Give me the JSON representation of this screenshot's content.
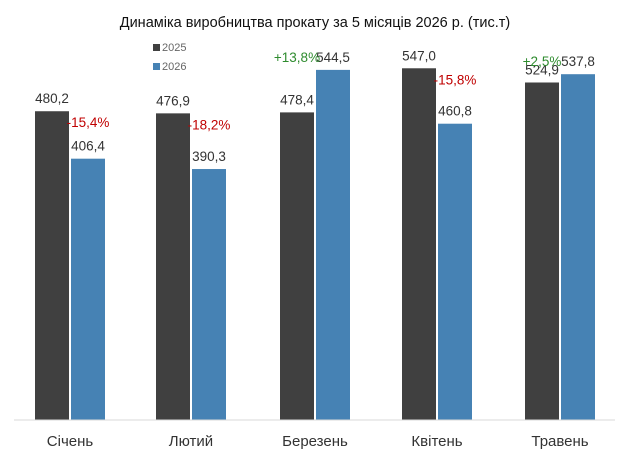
{
  "chart_data": {
    "type": "bar",
    "title": "Динаміка виробництва прокату за 5 місяців 2026 р. (тис.т)",
    "categories": [
      "Січень",
      "Лютий",
      "Березень",
      "Квітень",
      "Травень"
    ],
    "series": [
      {
        "name": "2025",
        "color": "#404040",
        "values": [
          480.2,
          476.9,
          478.4,
          547.0,
          524.9
        ],
        "labels": [
          "480,2",
          "476,9",
          "478,4",
          "547,0",
          "524,9"
        ]
      },
      {
        "name": "2026",
        "color": "#4682b4",
        "values": [
          406.4,
          390.3,
          544.5,
          460.8,
          537.8
        ],
        "labels": [
          "406,4",
          "390,3",
          "544,5",
          "460,8",
          "537,8"
        ]
      }
    ],
    "changes": [
      {
        "text": "-15,4%",
        "direction": "down"
      },
      {
        "text": "-18,2%",
        "direction": "down"
      },
      {
        "text": "+13,8%",
        "direction": "up"
      },
      {
        "text": "-15,8%",
        "direction": "down"
      },
      {
        "text": "+2,5%",
        "direction": "up"
      }
    ],
    "colors": {
      "down": "#c00000",
      "up": "#2e8b2e"
    },
    "ylim": [
      0,
      600
    ],
    "grid": false,
    "legend_position": "top-left"
  }
}
